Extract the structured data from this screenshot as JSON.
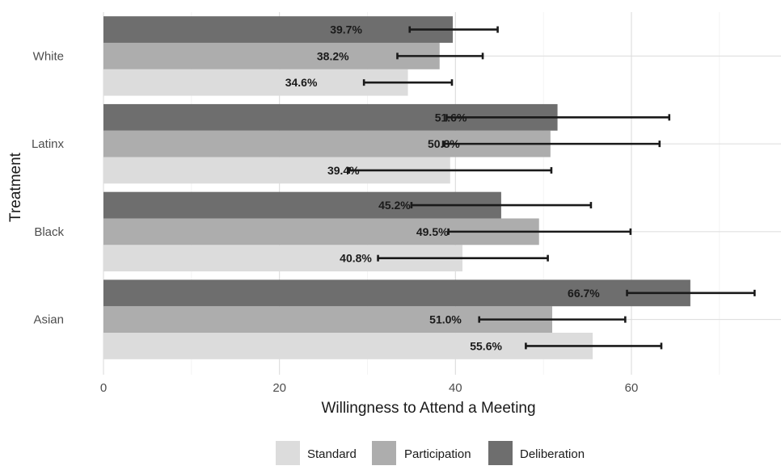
{
  "chart_data": {
    "type": "bar",
    "orientation": "horizontal",
    "categories": [
      "Asian",
      "Black",
      "Latinx",
      "White"
    ],
    "series": [
      {
        "name": "Standard",
        "color": "#dcdcdc",
        "values": [
          55.6,
          40.8,
          39.4,
          34.6
        ],
        "labels": [
          "55.6%",
          "40.8%",
          "39.4%",
          "34.6%"
        ],
        "ci_low": [
          48.0,
          31.2,
          27.9,
          29.6
        ],
        "ci_high": [
          63.4,
          50.5,
          50.9,
          39.6
        ]
      },
      {
        "name": "Participation",
        "color": "#adadad",
        "values": [
          51.0,
          49.5,
          50.8,
          38.2
        ],
        "labels": [
          "51.0%",
          "49.5%",
          "50.8%",
          "38.2%"
        ],
        "ci_low": [
          42.7,
          39.2,
          38.6,
          33.4
        ],
        "ci_high": [
          59.3,
          59.9,
          63.2,
          43.1
        ]
      },
      {
        "name": "Deliberation",
        "color": "#6e6e6e",
        "values": [
          66.7,
          45.2,
          51.6,
          39.7
        ],
        "labels": [
          "66.7%",
          "45.2%",
          "51.6%",
          "39.7%"
        ],
        "ci_low": [
          59.5,
          35.0,
          39.0,
          34.8
        ],
        "ci_high": [
          74.0,
          55.4,
          64.3,
          44.8
        ]
      }
    ],
    "x_ticks": [
      0,
      20,
      40,
      60
    ],
    "x_tick_labels": [
      "0",
      "20",
      "40",
      "60"
    ],
    "xlim": [
      0,
      77
    ],
    "xlabel": "Willingness to Attend a Meeting",
    "ylabel": "Treatment",
    "grid": true,
    "legend_position": "bottom",
    "error_bars": true
  }
}
